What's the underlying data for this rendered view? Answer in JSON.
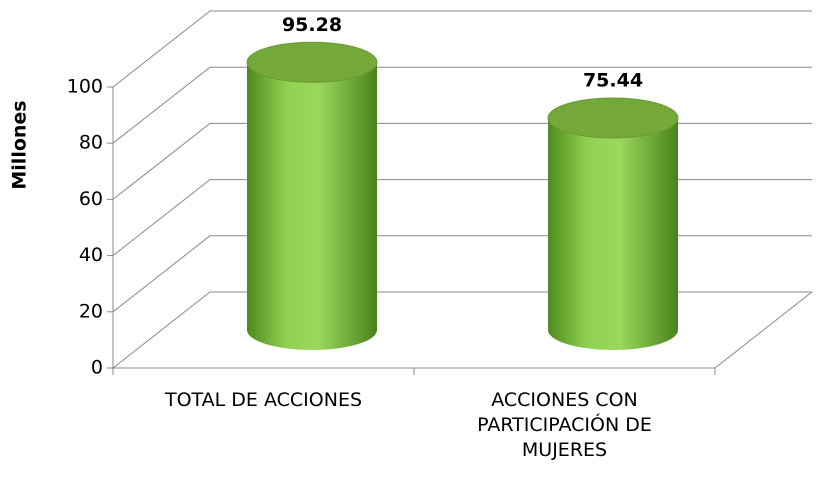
{
  "chart_data": {
    "type": "cylinder",
    "y_label": "Millones",
    "categories": [
      "TOTAL DE ACCIONES",
      "ACCIONES CON PARTICIPACIÓN DE MUJERES"
    ],
    "values": [
      95.28,
      75.44
    ],
    "color": "#8cc63f",
    "ylim": [
      0,
      100
    ],
    "yticks": [
      0,
      20,
      40,
      60,
      80,
      100
    ],
    "grid": true
  }
}
